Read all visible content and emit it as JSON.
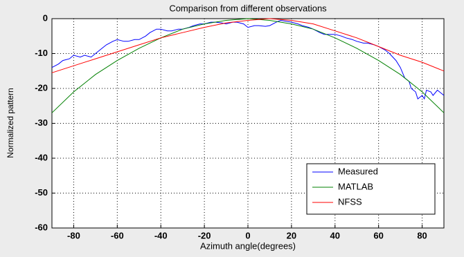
{
  "chart_data": {
    "type": "line",
    "title": "Comparison from different observations",
    "xlabel": "Azimuth angle(degrees)",
    "ylabel": "Normalized pattern",
    "xlim": [
      -90,
      90
    ],
    "ylim": [
      -60,
      0
    ],
    "xticks": [
      -80,
      -60,
      -40,
      -20,
      0,
      20,
      40,
      60,
      80
    ],
    "yticks": [
      -60,
      -50,
      -40,
      -30,
      -20,
      -10,
      0
    ],
    "grid": true,
    "legend": "lower right",
    "series": [
      {
        "name": "Measured",
        "color": "#0000ff",
        "x": [
          -90,
          -87,
          -85,
          -82,
          -80,
          -77,
          -75,
          -72,
          -70,
          -67,
          -65,
          -62,
          -60,
          -57,
          -55,
          -52,
          -50,
          -47,
          -45,
          -42,
          -40,
          -37,
          -35,
          -32,
          -30,
          -27,
          -25,
          -22,
          -20,
          -17,
          -15,
          -12,
          -10,
          -7,
          -5,
          -2,
          0,
          3,
          5,
          8,
          10,
          13,
          15,
          18,
          20,
          23,
          25,
          28,
          30,
          33,
          35,
          38,
          40,
          43,
          45,
          48,
          50,
          53,
          55,
          58,
          60,
          63,
          65,
          68,
          70,
          72,
          74,
          75,
          77,
          78,
          80,
          81,
          82,
          84,
          85,
          87,
          88,
          90
        ],
        "values": [
          -14,
          -13,
          -12,
          -11.5,
          -10.5,
          -11,
          -10.5,
          -11,
          -10,
          -8.5,
          -7.5,
          -6.5,
          -6,
          -6.5,
          -6.5,
          -6,
          -6,
          -5,
          -4,
          -3,
          -3,
          -3.5,
          -3.5,
          -3,
          -3,
          -2.5,
          -2,
          -1.5,
          -1.5,
          -1,
          -1,
          -1.2,
          -1.5,
          -1,
          -1,
          -1.5,
          -2.5,
          -2,
          -2,
          -2.2,
          -2,
          -1,
          -0.5,
          -0.8,
          -1,
          -1.5,
          -2,
          -2.5,
          -3,
          -4,
          -4.5,
          -4.5,
          -4.5,
          -5,
          -5.5,
          -6,
          -6.5,
          -7,
          -7,
          -7.5,
          -8,
          -9,
          -10,
          -12,
          -14,
          -17,
          -18,
          -20,
          -21,
          -23,
          -22,
          -23,
          -20.5,
          -21,
          -22,
          -20.5,
          -21,
          -22
        ]
      },
      {
        "name": "MATLAB",
        "color": "#008000",
        "x": [
          -90,
          -80,
          -70,
          -60,
          -50,
          -40,
          -30,
          -20,
          -10,
          0,
          10,
          20,
          30,
          40,
          50,
          60,
          70,
          80,
          90
        ],
        "values": [
          -27,
          -21,
          -16,
          -12,
          -8.5,
          -5.5,
          -3,
          -1.5,
          -0.5,
          0,
          -0.5,
          -1.5,
          -3,
          -5.5,
          -8.5,
          -12,
          -16,
          -21,
          -27
        ]
      },
      {
        "name": "NFSS",
        "color": "#ff0000",
        "x": [
          -90,
          -80,
          -70,
          -60,
          -50,
          -40,
          -30,
          -20,
          -10,
          0,
          10,
          20,
          30,
          40,
          50,
          60,
          70,
          80,
          90
        ],
        "values": [
          -15.5,
          -13.5,
          -11.5,
          -9.5,
          -7.5,
          -5.5,
          -4,
          -2.5,
          -1.2,
          -0.5,
          0,
          -0.5,
          -1.5,
          -3.5,
          -5.5,
          -8,
          -10.5,
          -12.5,
          -15
        ]
      }
    ]
  }
}
